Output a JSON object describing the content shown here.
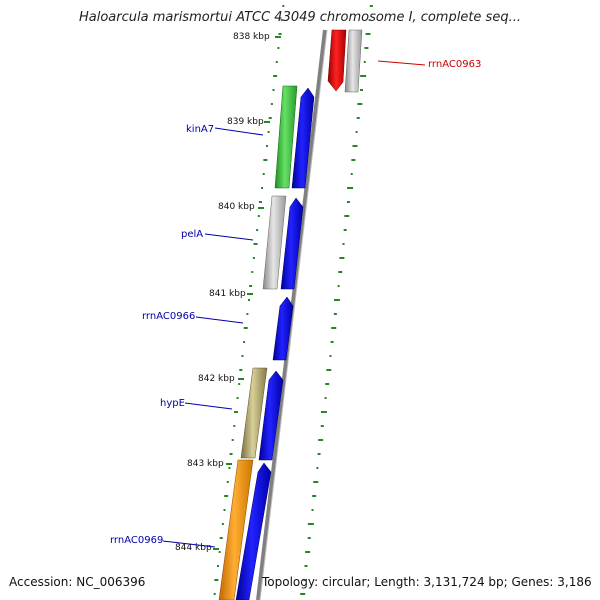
{
  "title": "Haloarcula marismortui ATCC 43049 chromosome I, complete seq...",
  "footer": {
    "accession": "Accession: NC_006396",
    "topology": "Topology: circular; Length: 3,131,724 bp; Genes: 3,186"
  },
  "ticks": [
    "838 kbp",
    "839 kbp",
    "840 kbp",
    "841 kbp",
    "842 kbp",
    "843 kbp",
    "844 kbp"
  ],
  "gene_labels": [
    {
      "name": "rrnAC0963",
      "color": "#cc0000"
    },
    {
      "name": "kinA7",
      "color": "#0000aa"
    },
    {
      "name": "pelA",
      "color": "#0000aa"
    },
    {
      "name": "rrnAC0966",
      "color": "#0000aa"
    },
    {
      "name": "hypE",
      "color": "#0000aa"
    },
    {
      "name": "rrnAC0969",
      "color": "#0000aa"
    }
  ],
  "colors": {
    "backbone": "#888888",
    "cds_blue": "#0000ee",
    "rrna_red": "#ee0000",
    "gray_feature": "#bbbbbb",
    "kinA7_green": "#44cc44",
    "hypE_olive": "#bbb070",
    "orange_feature": "#ff9900",
    "gc_skew_green": "#228822"
  }
}
